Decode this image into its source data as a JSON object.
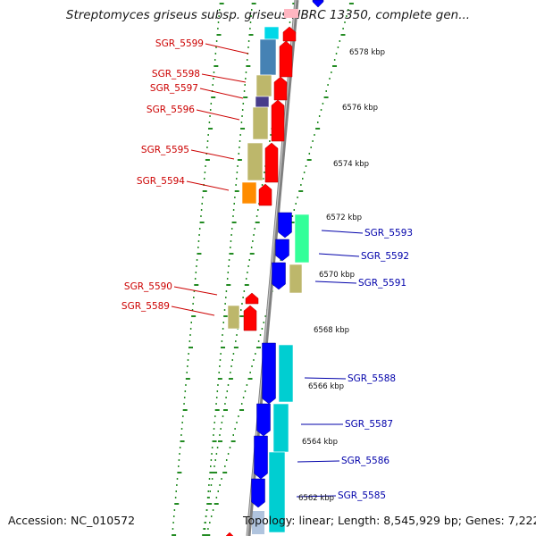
{
  "title": "Streptomyces griseus subsp. griseus NBRC 13350, complete gen...",
  "footer": {
    "accession": "Accession: NC_010572",
    "summary": "Topology: linear; Length: 8,545,929 bp; Genes: 7,222"
  },
  "colors": {
    "forward_strand": "#ff0000",
    "reverse_strand": "#0000ff",
    "backbone": "#808080",
    "tick": "#228b22",
    "label_forward": "#cc0000",
    "label_reverse": "#0000aa"
  },
  "genes": [
    {
      "name": "SGR_5599",
      "strand": "+"
    },
    {
      "name": "SGR_5598",
      "strand": "+"
    },
    {
      "name": "SGR_5597",
      "strand": "+"
    },
    {
      "name": "SGR_5596",
      "strand": "+"
    },
    {
      "name": "SGR_5595",
      "strand": "+"
    },
    {
      "name": "SGR_5594",
      "strand": "+"
    },
    {
      "name": "SGR_5593",
      "strand": "-"
    },
    {
      "name": "SGR_5592",
      "strand": "-"
    },
    {
      "name": "SGR_5591",
      "strand": "-"
    },
    {
      "name": "SGR_5590",
      "strand": "+"
    },
    {
      "name": "SGR_5589",
      "strand": "+"
    },
    {
      "name": "SGR_5588",
      "strand": "-"
    },
    {
      "name": "SGR_5587",
      "strand": "-"
    },
    {
      "name": "SGR_5586",
      "strand": "-"
    },
    {
      "name": "SGR_5585",
      "strand": "-"
    }
  ],
  "positions": [
    "6578 kbp",
    "6576 kbp",
    "6574 kbp",
    "6572 kbp",
    "6570 kbp",
    "6568 kbp",
    "6566 kbp",
    "6564 kbp",
    "6562 kbp"
  ]
}
